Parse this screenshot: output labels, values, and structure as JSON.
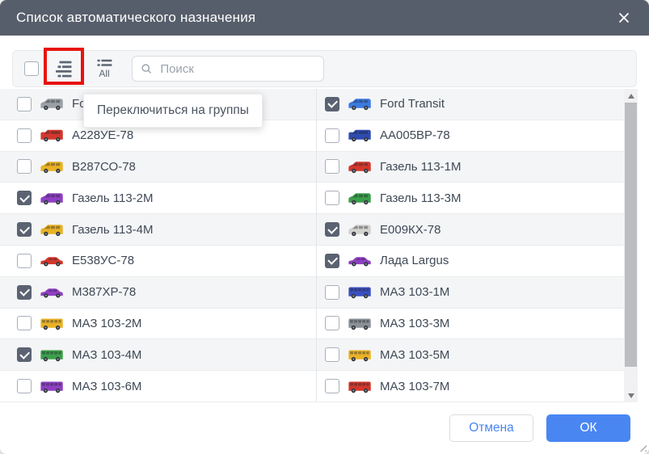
{
  "window": {
    "title": "Список автоматического назначения"
  },
  "toolbar": {
    "select_all_checkbox_checked": false,
    "all_label": "All",
    "search_placeholder": "Поиск",
    "search_value": ""
  },
  "tooltip_text": "Переключиться на группы",
  "vehicles": {
    "left": [
      {
        "label": "Fo",
        "checked": false,
        "type": "van",
        "color": "#9aa0a6"
      },
      {
        "label": "А228УЕ-78",
        "checked": false,
        "type": "boxvan",
        "color": "#d2372c"
      },
      {
        "label": "В287СО-78",
        "checked": false,
        "type": "van",
        "color": "#e9b226"
      },
      {
        "label": "Газель 113-2М",
        "checked": true,
        "type": "van",
        "color": "#8f3fc2"
      },
      {
        "label": "Газель 113-4М",
        "checked": true,
        "type": "van",
        "color": "#e9b226"
      },
      {
        "label": "Е538УС-78",
        "checked": false,
        "type": "wagon",
        "color": "#d2372c"
      },
      {
        "label": "М387ХР-78",
        "checked": true,
        "type": "wagon",
        "color": "#8f3fc2"
      },
      {
        "label": "МАЗ 103-2М",
        "checked": false,
        "type": "bus",
        "color": "#e9b226"
      },
      {
        "label": "МАЗ 103-4М",
        "checked": true,
        "type": "bus",
        "color": "#3c9e4b"
      },
      {
        "label": "МАЗ 103-6М",
        "checked": false,
        "type": "bus",
        "color": "#8f3fc2"
      }
    ],
    "right": [
      {
        "label": "Ford Transit",
        "checked": true,
        "type": "van",
        "color": "#3b7ae0"
      },
      {
        "label": "АА005ВР-78",
        "checked": false,
        "type": "boxvan",
        "color": "#2f4bb0"
      },
      {
        "label": "Газель 113-1М",
        "checked": false,
        "type": "van",
        "color": "#d2372c"
      },
      {
        "label": "Газель 113-3М",
        "checked": false,
        "type": "van",
        "color": "#3c9e4b"
      },
      {
        "label": "Е009КХ-78",
        "checked": true,
        "type": "van",
        "color": "#d2d2cf"
      },
      {
        "label": "Лада Largus",
        "checked": true,
        "type": "wagon",
        "color": "#8f3fc2"
      },
      {
        "label": "МАЗ 103-1М",
        "checked": false,
        "type": "bus",
        "color": "#3a4fc0"
      },
      {
        "label": "МАЗ 103-3М",
        "checked": false,
        "type": "bus",
        "color": "#8a9097"
      },
      {
        "label": "МАЗ 103-5М",
        "checked": false,
        "type": "bus",
        "color": "#e9b226"
      },
      {
        "label": "МАЗ 103-7М",
        "checked": false,
        "type": "bus",
        "color": "#d2372c"
      }
    ]
  },
  "footer": {
    "cancel_label": "Отмена",
    "ok_label": "ОК"
  },
  "colors": {
    "titlebar": "#575e6b",
    "accent_blue": "#4a86f2",
    "highlight_red": "#e8130d",
    "checkbox_checked": "#5b6372"
  }
}
